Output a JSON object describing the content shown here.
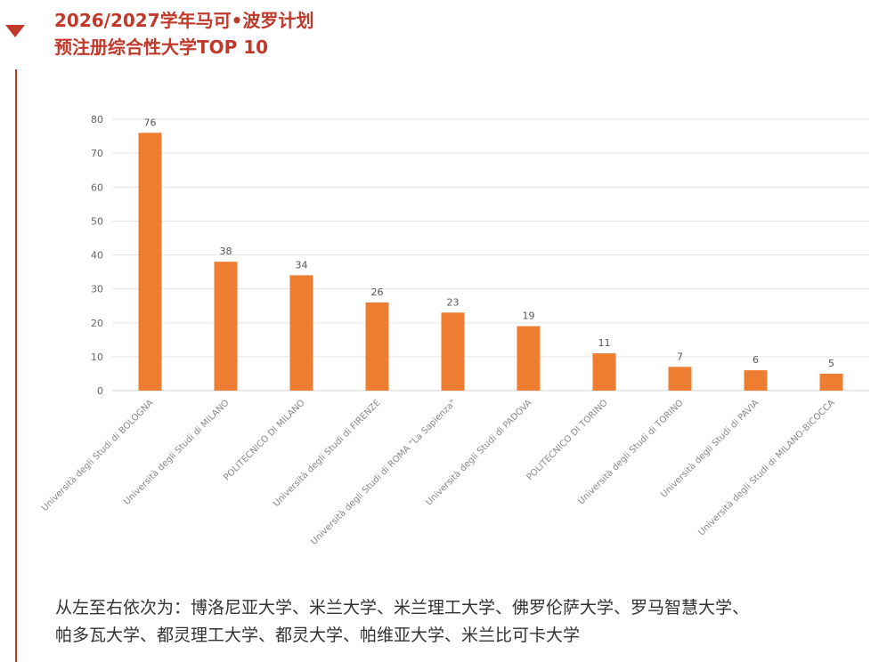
{
  "heading": {
    "line1": "2026/2027学年马可•波罗计划",
    "line2": "预注册综合性大学TOP 10"
  },
  "colors": {
    "accent": "#c0392b",
    "bar": "#ed7d31",
    "grid": "#e6e6e6",
    "tick_text": "#666666"
  },
  "chart_data": {
    "type": "bar",
    "title": "",
    "xlabel": "",
    "ylabel": "",
    "ylim": [
      0,
      80
    ],
    "yticks": [
      0,
      10,
      20,
      30,
      40,
      50,
      60,
      70,
      80
    ],
    "grid": true,
    "categories": [
      "Università degli Studi di BOLOGNA",
      "Università degli Studi di MILANO",
      "POLITECNICO DI MILANO",
      "Università degli Studi di FIRENZE",
      "Università degli Studi di ROMA \"La Sapienza\"",
      "Università degli Studi di PADOVA",
      "POLITECNICO DI TORINO",
      "Università degli Studi di TORINO",
      "Università degli Studi di PAVIA",
      "Università degli Studi di MILANO-BICOCCA"
    ],
    "values": [
      76,
      38,
      34,
      26,
      23,
      19,
      11,
      7,
      6,
      5
    ]
  },
  "caption": {
    "line1": "从左至右依次为：博洛尼亚大学、米兰大学、米兰理工大学、佛罗伦萨大学、罗马智慧大学、",
    "line2": "帕多瓦大学、都灵理工大学、都灵大学、帕维亚大学、米兰比可卡大学"
  }
}
